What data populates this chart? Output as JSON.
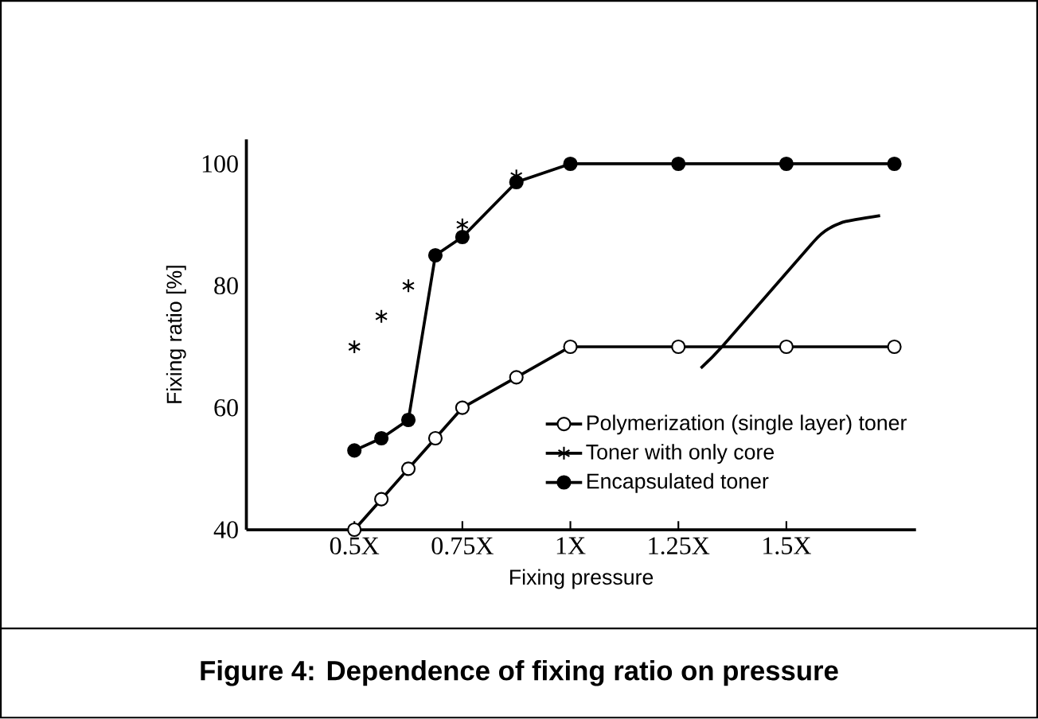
{
  "chart_data": {
    "type": "line",
    "title": "Figure 4: Dependence of fixing ratio on pressure",
    "xlabel": "Fixing pressure",
    "ylabel": "Fixing ratio [%]",
    "xlim": [
      0.25,
      1.8
    ],
    "ylim": [
      40,
      104
    ],
    "xticks": [
      {
        "value": 0.5,
        "label": "0.5X"
      },
      {
        "value": 0.75,
        "label": "0.75X"
      },
      {
        "value": 1,
        "label": "1X"
      },
      {
        "value": 1.25,
        "label": "1.25X"
      },
      {
        "value": 1.5,
        "label": "1.5X"
      }
    ],
    "yticks": [
      40,
      60,
      80,
      100
    ],
    "grid": false,
    "legend": "bottom right",
    "series": [
      {
        "name": "Polymerization (single layer) toner",
        "marker": "circle",
        "color": "#000000",
        "x": [
          0.5,
          0.5625,
          0.625,
          0.6875,
          0.75,
          0.875,
          1,
          1.25,
          1.5,
          1.75
        ],
        "values": [
          40,
          45,
          50,
          55,
          60,
          65,
          70,
          70,
          70,
          70
        ]
      },
      {
        "name": "Toner with only core",
        "type": "scatter",
        "marker": "cross",
        "color": "#000000",
        "x": [
          0.5,
          0.5625,
          0.625,
          0.75,
          0.875,
          1,
          1.25,
          1.5,
          1.75
        ],
        "values": [
          70,
          75,
          80,
          90,
          98,
          100,
          100,
          100,
          100
        ]
      },
      {
        "name": "Encapsulated toner",
        "marker": "circle",
        "color": "#000000",
        "x": [
          0.5,
          0.5625,
          0.625,
          0.6875,
          0.75,
          0.875,
          1,
          1.25,
          1.5,
          1.75
        ],
        "values": [
          53,
          55,
          58,
          85,
          88,
          97,
          100,
          100,
          100,
          100
        ]
      },
      {
        "marker": "none",
        "color": "#000000",
        "x": [
          1.302,
          1.351,
          1.564,
          1.599,
          1.634,
          1.717
        ],
        "values": [
          66.5,
          70,
          87.3,
          89.4,
          90.5,
          91.5
        ]
      }
    ]
  }
}
